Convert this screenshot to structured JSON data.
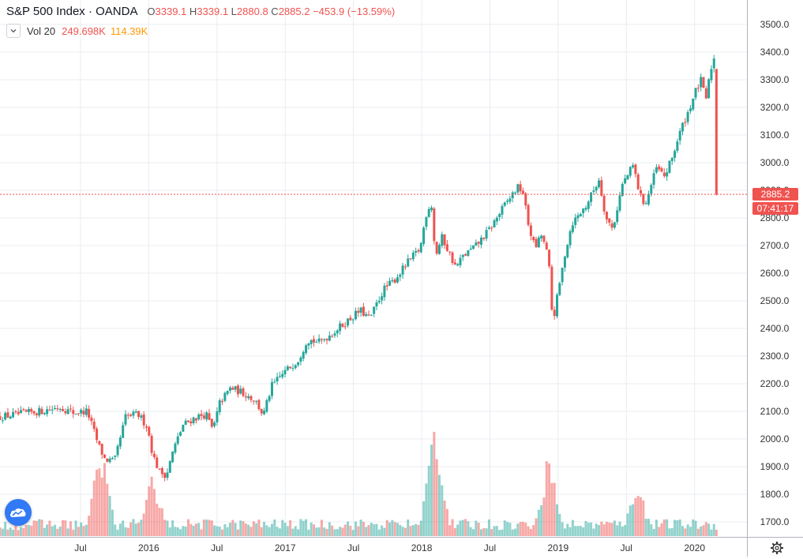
{
  "header": {
    "symbol": "S&P 500 Index · OANDA",
    "ohlc": {
      "o_label": "O",
      "o": "3339.1",
      "h_label": "H",
      "h": "3339.1",
      "l_label": "L",
      "l": "2880.8",
      "c_label": "C",
      "c": "2885.2",
      "change": "−453.9 (−13.59%)"
    }
  },
  "volume_indicator": {
    "label": "Vol 20",
    "value1": "249.698K",
    "value2": "114.39K"
  },
  "price_tags": {
    "last_price": "2885.2",
    "countdown": "07:41:17"
  },
  "icons": {
    "collapse": "chevron-down-icon",
    "logo": "tradingview-cloud-icon",
    "settings": "gear-icon"
  },
  "colors": {
    "up": "#26a69a",
    "down": "#ef5350",
    "grid": "#e9ecf2",
    "price_line": "#ef5350"
  },
  "chart_data": {
    "type": "candlestick",
    "title": "S&P 500 Index · OANDA",
    "interval": "weekly",
    "ylim": [
      1650,
      3550
    ],
    "yticks": [
      1700,
      1800,
      1900,
      2000,
      2100,
      2200,
      2300,
      2400,
      2500,
      2600,
      2700,
      2800,
      2900,
      3000,
      3100,
      3200,
      3300,
      3400,
      3500
    ],
    "ytick_labels": [
      "1700.0",
      "1800.0",
      "1900.0",
      "2000.0",
      "2100.0",
      "2200.0",
      "2300.0",
      "2400.0",
      "2500.0",
      "2600.0",
      "2700.0",
      "2800.0",
      "2900.0",
      "3000.0",
      "3100.0",
      "3200.0",
      "3300.0",
      "3400.0",
      "3500.0"
    ],
    "xticks": [
      {
        "label": "Jul",
        "date": 2015.5
      },
      {
        "label": "2016",
        "date": 2016.0
      },
      {
        "label": "Jul",
        "date": 2016.5
      },
      {
        "label": "2017",
        "date": 2017.0
      },
      {
        "label": "Jul",
        "date": 2017.5
      },
      {
        "label": "2018",
        "date": 2018.0
      },
      {
        "label": "Jul",
        "date": 2018.5
      },
      {
        "label": "2019",
        "date": 2019.0
      },
      {
        "label": "Jul",
        "date": 2019.5
      },
      {
        "label": "2020",
        "date": 2020.0
      }
    ],
    "x_range": [
      2014.91,
      2020.21
    ],
    "close_anchors": [
      [
        2014.91,
        2080
      ],
      [
        2015.05,
        2090
      ],
      [
        2015.2,
        2100
      ],
      [
        2015.35,
        2115
      ],
      [
        2015.45,
        2095
      ],
      [
        2015.55,
        2100
      ],
      [
        2015.63,
        1980
      ],
      [
        2015.68,
        1925
      ],
      [
        2015.75,
        1920
      ],
      [
        2015.83,
        2080
      ],
      [
        2015.92,
        2090
      ],
      [
        2015.99,
        2045
      ],
      [
        2016.03,
        1940
      ],
      [
        2016.08,
        1880
      ],
      [
        2016.13,
        1870
      ],
      [
        2016.18,
        1960
      ],
      [
        2016.25,
        2050
      ],
      [
        2016.33,
        2075
      ],
      [
        2016.42,
        2090
      ],
      [
        2016.47,
        2030
      ],
      [
        2016.52,
        2130
      ],
      [
        2016.6,
        2185
      ],
      [
        2016.7,
        2165
      ],
      [
        2016.78,
        2140
      ],
      [
        2016.84,
        2085
      ],
      [
        2016.9,
        2190
      ],
      [
        2016.99,
        2240
      ],
      [
        2017.1,
        2290
      ],
      [
        2017.16,
        2360
      ],
      [
        2017.25,
        2350
      ],
      [
        2017.35,
        2385
      ],
      [
        2017.45,
        2425
      ],
      [
        2017.55,
        2465
      ],
      [
        2017.62,
        2435
      ],
      [
        2017.72,
        2540
      ],
      [
        2017.8,
        2575
      ],
      [
        2017.9,
        2640
      ],
      [
        2017.99,
        2690
      ],
      [
        2018.03,
        2810
      ],
      [
        2018.07,
        2860
      ],
      [
        2018.1,
        2660
      ],
      [
        2018.15,
        2730
      ],
      [
        2018.25,
        2620
      ],
      [
        2018.3,
        2660
      ],
      [
        2018.4,
        2700
      ],
      [
        2018.5,
        2760
      ],
      [
        2018.6,
        2840
      ],
      [
        2018.7,
        2910
      ],
      [
        2018.74,
        2900
      ],
      [
        2018.78,
        2780
      ],
      [
        2018.83,
        2690
      ],
      [
        2018.88,
        2740
      ],
      [
        2018.93,
        2650
      ],
      [
        2018.96,
        2420
      ],
      [
        2019.0,
        2530
      ],
      [
        2019.05,
        2670
      ],
      [
        2019.1,
        2780
      ],
      [
        2019.2,
        2840
      ],
      [
        2019.3,
        2940
      ],
      [
        2019.35,
        2800
      ],
      [
        2019.4,
        2760
      ],
      [
        2019.47,
        2920
      ],
      [
        2019.55,
        2990
      ],
      [
        2019.6,
        2880
      ],
      [
        2019.64,
        2850
      ],
      [
        2019.72,
        2980
      ],
      [
        2019.78,
        2950
      ],
      [
        2019.83,
        3010
      ],
      [
        2019.9,
        3120
      ],
      [
        2019.95,
        3180
      ],
      [
        2020.0,
        3250
      ],
      [
        2020.05,
        3300
      ],
      [
        2020.08,
        3220
      ],
      [
        2020.12,
        3340
      ],
      [
        2020.14,
        3385
      ],
      [
        2020.15,
        3339.1
      ],
      [
        2020.16,
        2885.2
      ]
    ],
    "volume_ylim": [
      0,
      5.5
    ],
    "volume_spikes": [
      {
        "date": 2015.65,
        "value": 4.2
      },
      {
        "date": 2016.03,
        "value": 2.8
      },
      {
        "date": 2018.1,
        "value": 5.3
      },
      {
        "date": 2018.93,
        "value": 3.6
      },
      {
        "date": 2019.58,
        "value": 2.5
      }
    ],
    "last": {
      "open": 3339.1,
      "high": 3339.1,
      "low": 2880.8,
      "close": 2885.2
    }
  }
}
